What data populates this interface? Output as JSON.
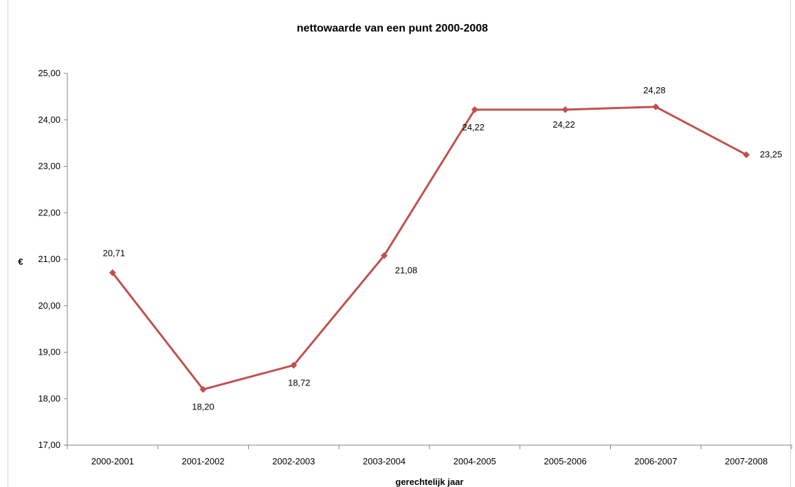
{
  "chart_data": {
    "type": "line",
    "title": "nettowaarde van een punt 2000-2008",
    "xlabel": "gerechtelijk jaar",
    "ylabel": "€",
    "categories": [
      "2000-2001",
      "2001-2002",
      "2002-2003",
      "2003-2004",
      "2004-2005",
      "2005-2006",
      "2006-2007",
      "2007-2008"
    ],
    "series": [
      {
        "values": [
          20.71,
          18.2,
          18.72,
          21.08,
          24.22,
          24.22,
          24.28,
          23.25
        ],
        "data_labels": [
          "20,71",
          "18,20",
          "18,72",
          "21,08",
          "24,22",
          "24,22",
          "24,28",
          "23,25"
        ],
        "color": "#c0504d"
      }
    ],
    "ylim": [
      17,
      25
    ],
    "yticks": [
      "17,00",
      "18,00",
      "19,00",
      "20,00",
      "21,00",
      "22,00",
      "23,00",
      "24,00",
      "25,00"
    ],
    "grid": false,
    "legend": "none"
  }
}
